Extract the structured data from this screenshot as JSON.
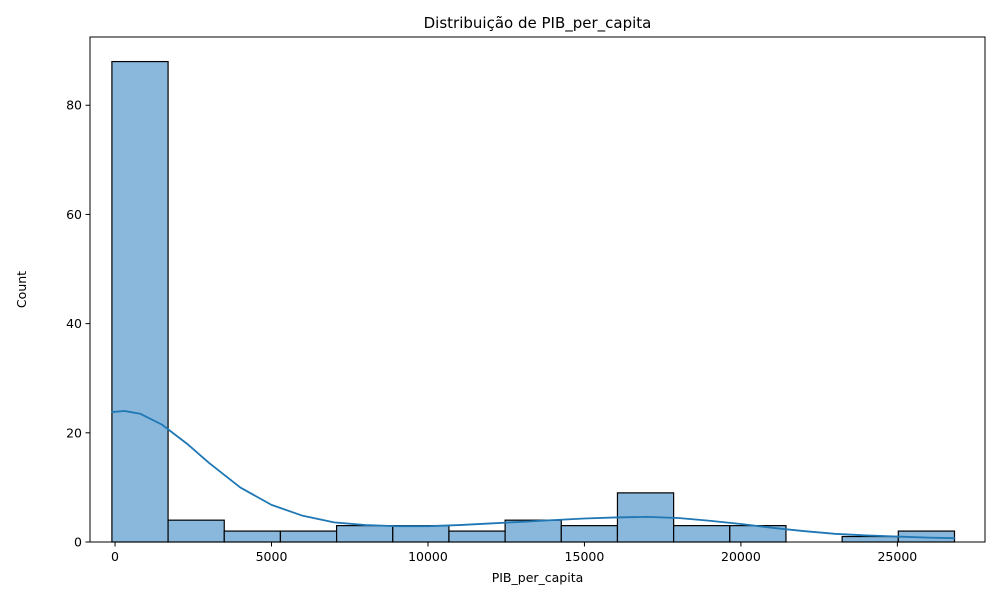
{
  "chart_data": {
    "type": "bar",
    "title": "Distribuição de PIB_per_capita",
    "xlabel": "PIB_per_capita",
    "ylabel": "Count",
    "xlim": [
      -800,
      27800
    ],
    "ylim": [
      0,
      92.5
    ],
    "x_ticks": [
      0,
      5000,
      10000,
      15000,
      20000,
      25000
    ],
    "x_tick_labels": [
      "0",
      "5000",
      "10000",
      "15000",
      "20000",
      "25000"
    ],
    "y_ticks": [
      0,
      20,
      40,
      60,
      80
    ],
    "y_tick_labels": [
      "0",
      "20",
      "40",
      "60",
      "80"
    ],
    "grid": false,
    "bins": {
      "edges": [
        -100,
        1695,
        3490,
        5285,
        7080,
        8875,
        10670,
        12465,
        14260,
        16055,
        17850,
        19645,
        21440,
        23235,
        25030,
        26825
      ],
      "counts": [
        88,
        4,
        2,
        2,
        3,
        3,
        2,
        4,
        3,
        9,
        3,
        3,
        0,
        1,
        2
      ]
    },
    "kde": {
      "x": [
        -100,
        300,
        800,
        1500,
        2300,
        3000,
        4000,
        5000,
        6000,
        7000,
        8000,
        9000,
        10000,
        11000,
        12000,
        13000,
        14000,
        15000,
        16000,
        17000,
        18000,
        19000,
        20000,
        21000,
        22000,
        23000,
        24000,
        25000,
        26000,
        26825
      ],
      "y": [
        23.8,
        24.0,
        23.5,
        21.5,
        18.0,
        14.5,
        10.0,
        6.8,
        4.8,
        3.6,
        3.1,
        2.9,
        2.9,
        3.1,
        3.4,
        3.7,
        4.0,
        4.3,
        4.5,
        4.6,
        4.4,
        3.9,
        3.3,
        2.6,
        2.0,
        1.5,
        1.2,
        1.0,
        0.8,
        0.7
      ]
    },
    "colors": {
      "bar_fill": "#89b8dc",
      "bar_edge": "#000000",
      "kde_line": "#1f77b4"
    }
  }
}
